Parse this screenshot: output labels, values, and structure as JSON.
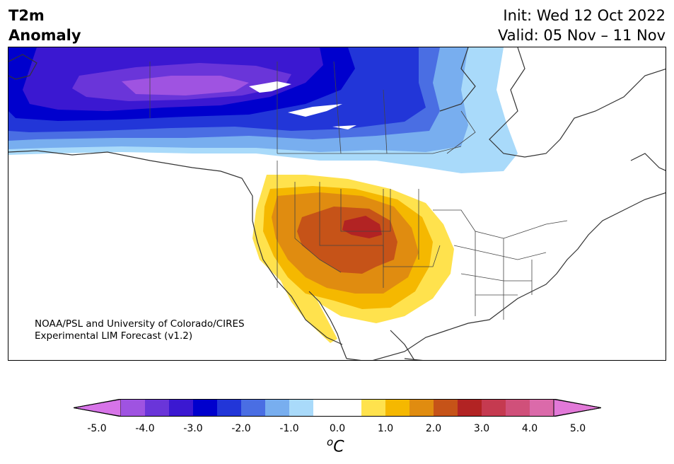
{
  "header": {
    "title_line1": "T2m",
    "title_line2": "Anomaly",
    "init": "Init: Wed 12 Oct 2022",
    "valid": "Valid: 05 Nov – 11 Nov"
  },
  "credit": {
    "line1": "NOAA/PSL and University of Colorado/CIRES",
    "line2": "Experimental LIM Forecast (v1.2)"
  },
  "colorbar": {
    "colors": [
      "#d774e8",
      "#9f53e1",
      "#6a35d9",
      "#3b18d1",
      "#0000cd",
      "#2236d8",
      "#4a6ee3",
      "#78aeef",
      "#a9dafa",
      "#ffffff",
      "#ffffff",
      "#ffe24d",
      "#f5b800",
      "#e08c10",
      "#c65318",
      "#b22323",
      "#c53a50",
      "#d0507a",
      "#db6aaa",
      "#e279d8"
    ],
    "ticks": [
      "-5.0",
      "-4.0",
      "-3.0",
      "-2.0",
      "-1.0",
      "0.0",
      "1.0",
      "2.0",
      "3.0",
      "4.0",
      "5.0"
    ],
    "unit_base": "C",
    "unit_sup": "o"
  }
}
